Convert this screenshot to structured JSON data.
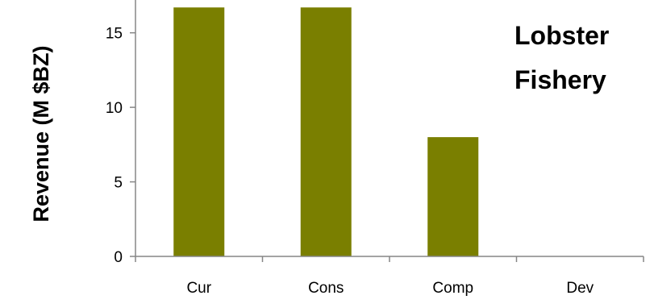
{
  "chart_data": {
    "type": "bar",
    "title_lines": [
      "Lobster",
      "Fishery"
    ],
    "xlabel": "",
    "ylabel": "Revenue (M $BZ)",
    "categories": [
      "Cur",
      "Cons",
      "Comp",
      "Dev"
    ],
    "series": [
      {
        "values": [
          16.7,
          16.7,
          8.0,
          0
        ]
      }
    ],
    "bar_color": "#7a7f00",
    "ylim": [
      0,
      17.2
    ],
    "yticks": [
      0,
      5,
      10,
      15
    ],
    "grid": false,
    "legend": "none"
  }
}
